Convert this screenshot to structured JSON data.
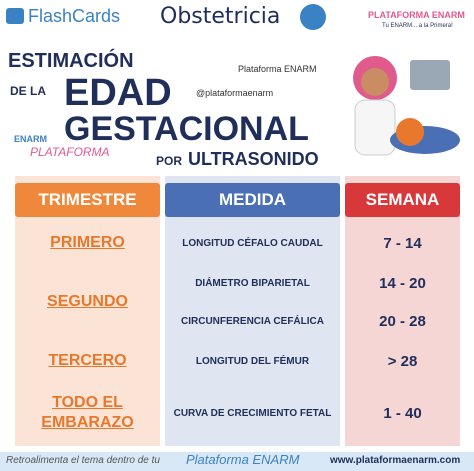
{
  "header": {
    "brand": "FlashCards",
    "subject": "Obstetricia",
    "org": "PLATAFORMA ENARM",
    "slogan": "Tu ENARM... a la Primera!"
  },
  "title": {
    "line1": "ESTIMACIÓN",
    "line2_prefix": "DE LA",
    "line2": "EDAD",
    "line3": "GESTACIONAL",
    "line4_prefix": "POR",
    "line4": "ULTRASONIDO"
  },
  "social": {
    "facebook": "Plataforma ENARM",
    "instagram": "@plataformaenarm"
  },
  "logo": {
    "top": "ENARM",
    "bottom": "PLATAFORMA"
  },
  "table": {
    "headers": [
      "TRIMESTRE",
      "MEDIDA",
      "SEMANA"
    ],
    "groups": [
      {
        "trimester": "PRIMERO",
        "items": [
          {
            "measure": "LONGITUD CÉFALO CAUDAL",
            "weeks": "7 - 14"
          }
        ]
      },
      {
        "trimester": "SEGUNDO",
        "items": [
          {
            "measure": "DIÁMETRO BIPARIETAL",
            "weeks": "14 - 20"
          },
          {
            "measure": "CIRCUNFERENCIA CEFÁLICA",
            "weeks": "20 - 28"
          }
        ]
      },
      {
        "trimester": "TERCERO",
        "items": [
          {
            "measure": "LONGITUD DEL FÉMUR",
            "weeks": "> 28"
          }
        ]
      },
      {
        "trimester": "TODO EL EMBARAZO",
        "items": [
          {
            "measure": "CURVA DE CRECIMIENTO FETAL",
            "weeks": "1 - 40"
          }
        ]
      }
    ]
  },
  "footer": {
    "text": "Retroalimenta el tema dentro de tu",
    "brand": "Plataforma ENARM",
    "url": "www.plataformaenarm.com"
  }
}
